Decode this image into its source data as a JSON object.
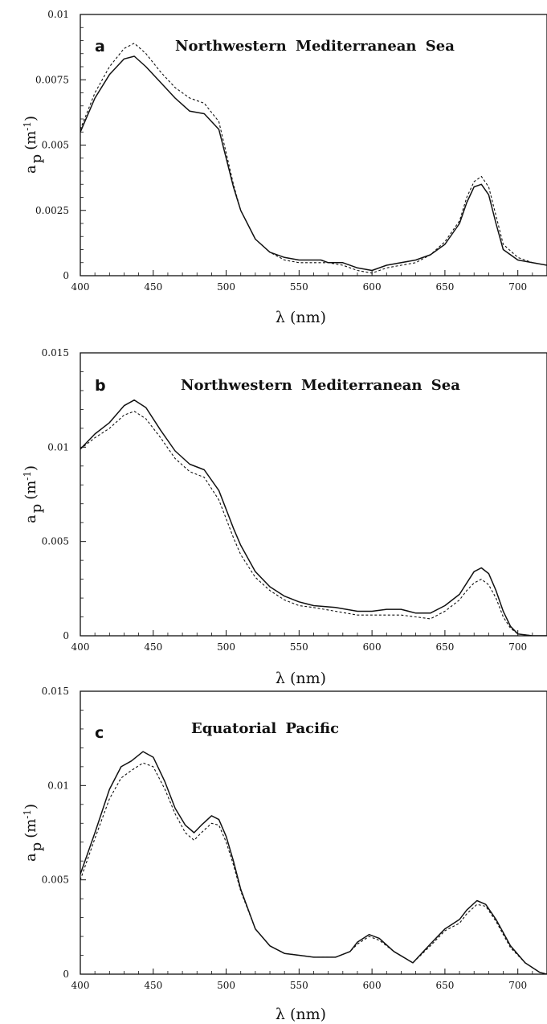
{
  "chart_data": [
    {
      "type": "line",
      "panel_label": "a",
      "title": "Northwestern Mediterranean Sea",
      "xlabel": "λ (nm)",
      "ylabel": "a p (m-1)",
      "ylabel_main": "a",
      "ylabel_sub": "p",
      "ylabel_unit": "(m",
      "ylabel_exp": "-1",
      "ylabel_close": ")",
      "xlim": [
        400,
        720
      ],
      "ylim": [
        0,
        0.01
      ],
      "xticks": [
        400,
        450,
        500,
        550,
        600,
        650,
        700
      ],
      "yticks": [
        0,
        0.0025,
        0.005,
        0.0075,
        0.01
      ],
      "ytick_labels": [
        "0",
        "0.0025",
        "0.005",
        "0.0075",
        "0.01"
      ],
      "series": [
        {
          "style": "solid",
          "x": [
            400,
            410,
            420,
            430,
            437,
            445,
            455,
            465,
            475,
            485,
            495,
            500,
            505,
            510,
            520,
            530,
            540,
            550,
            560,
            565,
            570,
            580,
            590,
            600,
            610,
            620,
            630,
            640,
            650,
            660,
            665,
            670,
            675,
            680,
            685,
            690,
            700,
            710,
            720
          ],
          "y": [
            0.0055,
            0.0068,
            0.0077,
            0.0083,
            0.0084,
            0.008,
            0.0074,
            0.0068,
            0.0063,
            0.0062,
            0.0056,
            0.0045,
            0.0034,
            0.0025,
            0.0014,
            0.0009,
            0.0007,
            0.0006,
            0.0006,
            0.0006,
            0.0005,
            0.0005,
            0.0003,
            0.0002,
            0.0004,
            0.0005,
            0.0006,
            0.0008,
            0.0012,
            0.002,
            0.0028,
            0.0034,
            0.0035,
            0.0031,
            0.002,
            0.001,
            0.0006,
            0.0005,
            0.0004
          ]
        },
        {
          "style": "dashed",
          "x": [
            400,
            410,
            420,
            430,
            437,
            445,
            455,
            465,
            475,
            485,
            495,
            500,
            505,
            510,
            520,
            530,
            540,
            550,
            560,
            565,
            570,
            580,
            590,
            600,
            610,
            620,
            630,
            640,
            650,
            660,
            665,
            670,
            675,
            680,
            685,
            690,
            700,
            710,
            720
          ],
          "y": [
            0.0056,
            0.007,
            0.008,
            0.0087,
            0.0089,
            0.0085,
            0.0078,
            0.0072,
            0.0068,
            0.0066,
            0.0059,
            0.0047,
            0.0035,
            0.0025,
            0.0014,
            0.0009,
            0.0006,
            0.0005,
            0.0005,
            0.0005,
            0.0005,
            0.0004,
            0.0002,
            0.0001,
            0.0003,
            0.0004,
            0.0005,
            0.0008,
            0.0013,
            0.0021,
            0.003,
            0.0036,
            0.0038,
            0.0034,
            0.0023,
            0.0012,
            0.0007,
            0.0005,
            0.0004
          ]
        }
      ]
    },
    {
      "type": "line",
      "panel_label": "b",
      "title": "Northwestern Mediterranean Sea",
      "xlabel": "λ (nm)",
      "ylabel": "a p (m-1)",
      "ylabel_main": "a",
      "ylabel_sub": "p",
      "ylabel_unit": "(m",
      "ylabel_exp": "-1",
      "ylabel_close": ")",
      "xlim": [
        400,
        720
      ],
      "ylim": [
        0,
        0.015
      ],
      "xticks": [
        400,
        450,
        500,
        550,
        600,
        650,
        700
      ],
      "yticks": [
        0,
        0.005,
        0.01,
        0.015
      ],
      "ytick_labels": [
        "0",
        "0.005",
        "0.01",
        "0.015"
      ],
      "series": [
        {
          "style": "solid",
          "x": [
            400,
            410,
            420,
            430,
            437,
            445,
            455,
            465,
            475,
            485,
            495,
            500,
            505,
            510,
            520,
            530,
            540,
            550,
            560,
            575,
            590,
            600,
            610,
            620,
            630,
            640,
            650,
            660,
            665,
            670,
            675,
            680,
            685,
            690,
            695,
            700,
            710,
            720
          ],
          "y": [
            0.0099,
            0.0107,
            0.0113,
            0.0122,
            0.0125,
            0.0121,
            0.0109,
            0.0098,
            0.0091,
            0.0088,
            0.0077,
            0.0067,
            0.0057,
            0.0048,
            0.0034,
            0.0026,
            0.0021,
            0.0018,
            0.0016,
            0.0015,
            0.0013,
            0.0013,
            0.0014,
            0.0014,
            0.0012,
            0.0012,
            0.0016,
            0.0022,
            0.0028,
            0.0034,
            0.0036,
            0.0033,
            0.0024,
            0.0013,
            0.0005,
            0.0001,
            0.0,
            0.0
          ]
        },
        {
          "style": "dashed",
          "x": [
            400,
            410,
            420,
            430,
            437,
            445,
            455,
            465,
            475,
            485,
            495,
            500,
            505,
            510,
            520,
            530,
            540,
            550,
            560,
            575,
            590,
            600,
            610,
            620,
            630,
            640,
            650,
            660,
            665,
            670,
            675,
            680,
            685,
            690,
            695,
            700,
            710,
            720
          ],
          "y": [
            0.0099,
            0.0105,
            0.011,
            0.0117,
            0.0119,
            0.0115,
            0.0105,
            0.0094,
            0.0087,
            0.0084,
            0.0072,
            0.0062,
            0.0052,
            0.0043,
            0.0031,
            0.0024,
            0.0019,
            0.0016,
            0.0015,
            0.0013,
            0.0011,
            0.0011,
            0.0011,
            0.0011,
            0.001,
            0.0009,
            0.0013,
            0.0019,
            0.0024,
            0.0028,
            0.003,
            0.0027,
            0.002,
            0.001,
            0.0004,
            0.0001,
            0.0,
            0.0
          ]
        }
      ]
    },
    {
      "type": "line",
      "panel_label": "c",
      "title": "Equatorial Pacific",
      "xlabel": "λ (nm)",
      "ylabel": "a p (m-1)",
      "ylabel_main": "a",
      "ylabel_sub": "p",
      "ylabel_unit": "(m",
      "ylabel_exp": "-1",
      "ylabel_close": ")",
      "xlim": [
        400,
        720
      ],
      "ylim": [
        0,
        0.015
      ],
      "xticks": [
        400,
        450,
        500,
        550,
        600,
        650,
        700
      ],
      "yticks": [
        0,
        0.005,
        0.01,
        0.015
      ],
      "ytick_labels": [
        "0",
        "0.005",
        "0.01",
        "0.015"
      ],
      "series": [
        {
          "style": "solid",
          "x": [
            400,
            410,
            420,
            428,
            435,
            443,
            450,
            458,
            465,
            472,
            478,
            483,
            490,
            495,
            500,
            505,
            510,
            520,
            530,
            540,
            550,
            560,
            570,
            575,
            585,
            590,
            598,
            605,
            615,
            628,
            640,
            650,
            660,
            665,
            672,
            678,
            685,
            695,
            705,
            715,
            720
          ],
          "y": [
            0.0053,
            0.0075,
            0.0098,
            0.011,
            0.0113,
            0.0118,
            0.0115,
            0.0102,
            0.0088,
            0.0079,
            0.0075,
            0.0079,
            0.0084,
            0.0082,
            0.0073,
            0.006,
            0.0045,
            0.0024,
            0.0015,
            0.0011,
            0.001,
            0.0009,
            0.0009,
            0.0009,
            0.0012,
            0.0017,
            0.0021,
            0.0019,
            0.0012,
            0.0006,
            0.0016,
            0.0024,
            0.0029,
            0.0034,
            0.0039,
            0.0037,
            0.0029,
            0.0015,
            0.0006,
            0.0001,
            0.0
          ]
        },
        {
          "style": "dashed",
          "x": [
            400,
            410,
            420,
            428,
            435,
            443,
            450,
            458,
            465,
            472,
            478,
            483,
            490,
            495,
            500,
            505,
            510,
            520,
            530,
            540,
            550,
            560,
            570,
            575,
            585,
            590,
            598,
            605,
            615,
            628,
            640,
            650,
            660,
            665,
            672,
            678,
            685,
            695,
            705,
            715,
            720
          ],
          "y": [
            0.005,
            0.0072,
            0.0093,
            0.0104,
            0.0108,
            0.0112,
            0.011,
            0.0098,
            0.0085,
            0.0075,
            0.0071,
            0.0075,
            0.008,
            0.0079,
            0.007,
            0.0058,
            0.0044,
            0.0024,
            0.0015,
            0.0011,
            0.001,
            0.0009,
            0.0009,
            0.0009,
            0.0012,
            0.0016,
            0.002,
            0.0018,
            0.0012,
            0.0006,
            0.0015,
            0.0023,
            0.0027,
            0.0032,
            0.0037,
            0.0036,
            0.0028,
            0.0014,
            0.0006,
            0.0001,
            0.0
          ]
        }
      ]
    }
  ]
}
